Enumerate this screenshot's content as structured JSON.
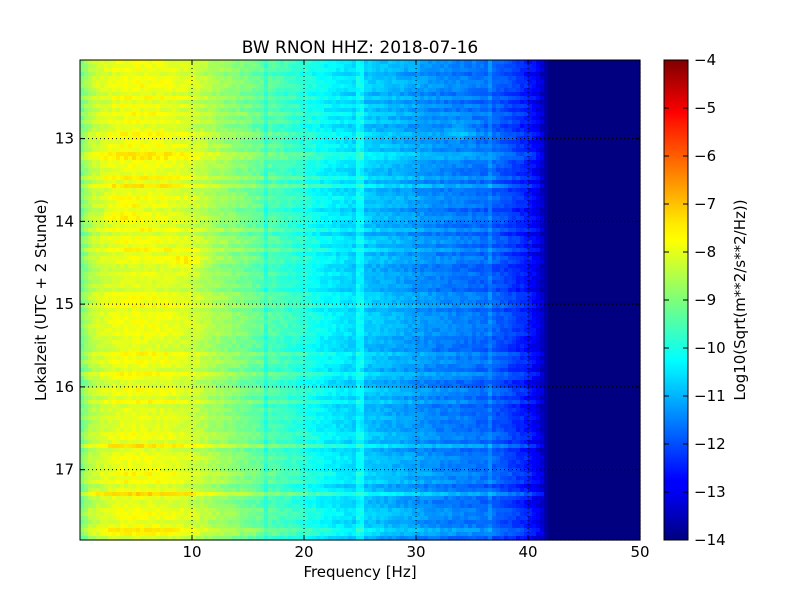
{
  "chart_data": {
    "type": "heatmap",
    "title": "BW RNON HHZ: 2018-07-16",
    "xlabel": "Frequency [Hz]",
    "ylabel": "Lokalzeit (UTC + 2 Stunde)",
    "xlim": [
      0,
      50
    ],
    "ylim": [
      12.05,
      17.85
    ],
    "y_inverted": true,
    "x_ticks": [
      10,
      20,
      30,
      40,
      50
    ],
    "x_tick_labels": [
      "10",
      "20",
      "30",
      "40",
      "50"
    ],
    "y_ticks": [
      13,
      14,
      15,
      16,
      17
    ],
    "y_tick_labels": [
      "13",
      "14",
      "15",
      "16",
      "17"
    ],
    "grid": true,
    "colormap": "jet",
    "colorbar": {
      "label": "Log10(Sqrt(m**2/s**2/Hz))",
      "range": [
        -14,
        -4
      ],
      "ticks": [
        -4,
        -5,
        -6,
        -7,
        -8,
        -9,
        -10,
        -11,
        -12,
        -13,
        -14
      ],
      "tick_labels": [
        "−4",
        "−5",
        "−6",
        "−7",
        "−8",
        "−9",
        "−10",
        "−11",
        "−12",
        "−13",
        "−14"
      ]
    },
    "spectral_profile": {
      "frequency_hz": [
        0,
        1,
        3,
        5,
        8,
        10,
        12,
        15,
        18,
        20,
        22,
        25,
        28,
        30,
        32,
        35,
        37,
        38,
        40,
        41,
        42,
        50
      ],
      "log10_amplitude": [
        -9.2,
        -8.4,
        -8.0,
        -7.9,
        -8.0,
        -8.2,
        -8.6,
        -9.1,
        -9.6,
        -9.9,
        -10.3,
        -10.7,
        -11.0,
        -11.2,
        -11.4,
        -11.6,
        -11.8,
        -12.0,
        -12.5,
        -13.0,
        -14.0,
        -14.0
      ]
    },
    "features": [
      {
        "type": "line",
        "frequency_hz": 16.7,
        "log10_amplitude_offset": -0.4
      },
      {
        "type": "line",
        "frequency_hz": 25.0,
        "log10_amplitude_offset": 0.45
      },
      {
        "type": "line",
        "frequency_hz": 36.7,
        "log10_amplitude_offset": 0.3
      },
      {
        "type": "blob",
        "frequency_hz": 9.5,
        "time": 14.5,
        "log10_amplitude_offset": 0.5
      },
      {
        "type": "blob",
        "frequency_hz": 4.0,
        "time": 13.9,
        "log10_amplitude_offset": 0.3
      },
      {
        "type": "blob",
        "frequency_hz": 34.0,
        "time": 12.9,
        "log10_amplitude_offset": 0.5
      }
    ]
  }
}
